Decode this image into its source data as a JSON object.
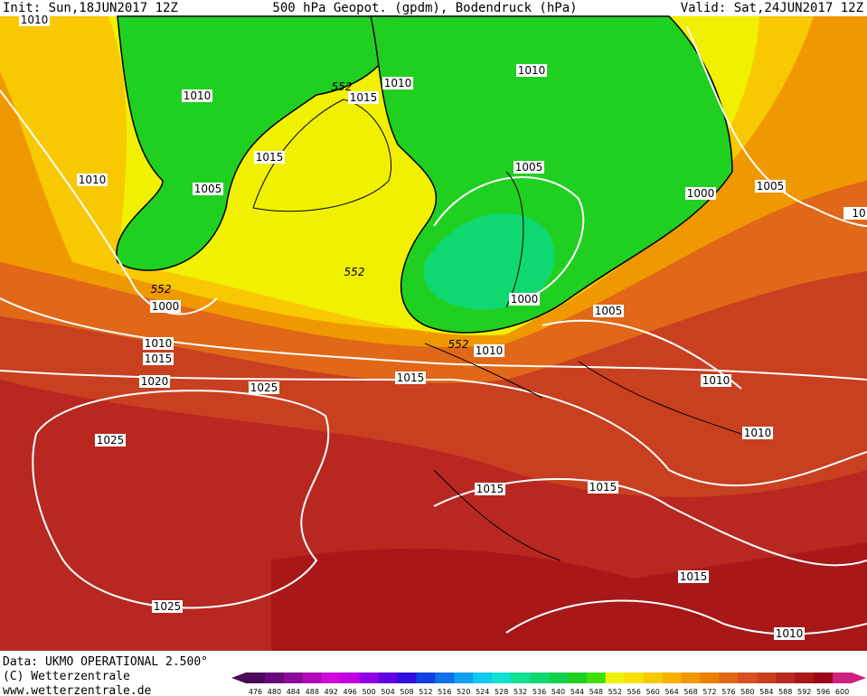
{
  "header": {
    "init": "Init: Sun,18JUN2017 12Z",
    "title": "500 hPa Geopot. (gpdm), Bodendruck (hPa)",
    "valid": "Valid: Sat,24JUN2017 12Z"
  },
  "map": {
    "isobar_labels": [
      1010,
      1010,
      1015,
      1010,
      1010,
      1015,
      1010,
      1005,
      1005,
      1000,
      1005,
      1000,
      1000,
      1005,
      1010,
      1015,
      1010,
      1020,
      1015,
      1025,
      1010,
      1025,
      1010,
      1015,
      1015,
      1015,
      1025,
      1010,
      "10"
    ],
    "geopotential_labels": [
      552,
      552,
      552,
      552
    ]
  },
  "footer": {
    "data": "Data: UKMO OPERATIONAL 2.500°",
    "copyright": "(C) Wetterzentrale",
    "url": "www.wetterzentrale.de"
  },
  "colorbar": {
    "values": [
      476,
      480,
      484,
      488,
      492,
      496,
      500,
      504,
      508,
      512,
      516,
      520,
      524,
      528,
      532,
      536,
      540,
      544,
      548,
      552,
      556,
      560,
      564,
      568,
      572,
      576,
      580,
      584,
      588,
      592,
      596,
      600
    ],
    "colors": [
      "#4b0a5a",
      "#6a0a7a",
      "#8a0a9a",
      "#b00ab8",
      "#d00ad8",
      "#c000e0",
      "#9000e0",
      "#6000e0",
      "#3010e0",
      "#1040e0",
      "#1070e8",
      "#10a0f0",
      "#10c8f0",
      "#10e0d0",
      "#10e090",
      "#10d870",
      "#10d050",
      "#20d020",
      "#40e010",
      "#f0f000",
      "#f8e000",
      "#f8c800",
      "#f8b000",
      "#f09800",
      "#e88000",
      "#e06818",
      "#d85020",
      "#c84020",
      "#b82820",
      "#a81818",
      "#980818",
      "#d02080"
    ]
  }
}
